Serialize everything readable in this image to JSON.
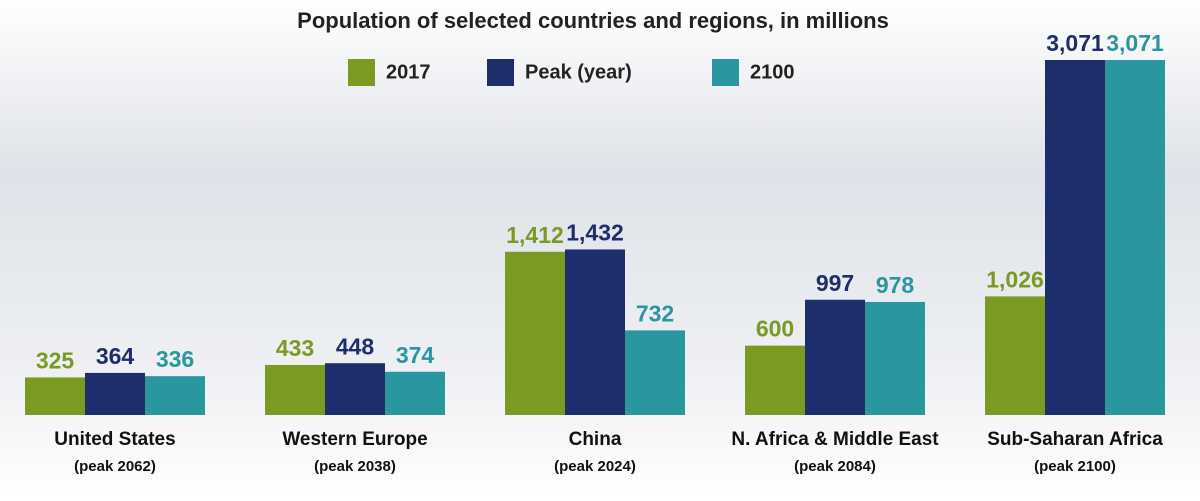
{
  "chart_data": {
    "type": "bar",
    "title": "Population of selected countries and regions, in millions",
    "categories": [
      "United States",
      "Western Europe",
      "China",
      "N. Africa & Middle East",
      "Sub-Saharan Africa"
    ],
    "category_notes": [
      "(peak 2062)",
      "(peak 2038)",
      "(peak 2024)",
      "(peak 2084)",
      "(peak 2100)"
    ],
    "series": [
      {
        "name": "2017",
        "color": "#7a9a22",
        "values": [
          325,
          433,
          1412,
          600,
          1026
        ],
        "value_labels": [
          "325",
          "433",
          "1,412",
          "600",
          "1,026"
        ]
      },
      {
        "name": "Peak (year)",
        "color": "#1e2d6b",
        "values": [
          364,
          448,
          1432,
          997,
          3071
        ],
        "value_labels": [
          "364",
          "448",
          "1,432",
          "997",
          "3,071"
        ]
      },
      {
        "name": "2100",
        "color": "#2a96a0",
        "values": [
          336,
          374,
          732,
          978,
          3071
        ],
        "value_labels": [
          "336",
          "374",
          "732",
          "978",
          "3,071"
        ]
      }
    ]
  }
}
